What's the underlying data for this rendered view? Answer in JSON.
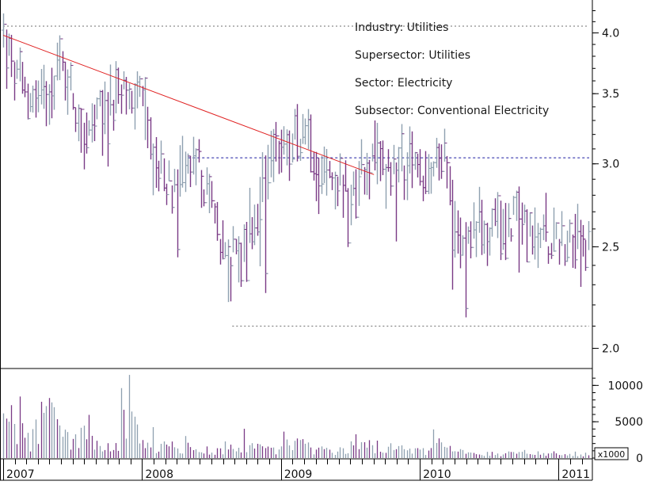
{
  "info": {
    "industry": "Industry: Utilities",
    "supersector": "Supersector: Utilities",
    "sector": "Sector: Electricity",
    "subsector": "Subsector: Conventional Electricity"
  },
  "colors": {
    "price_bar": "#7a3a86",
    "price_bar_alt": "#8fa0b0",
    "trend_line": "#e02020",
    "support_line": "#1a1aa0",
    "reference_line": "#707070",
    "volume_bar": "#7a3a86",
    "axis": "#000000"
  },
  "chart_data": [
    {
      "type": "bar",
      "title": "",
      "xlabel": "",
      "ylabel": "",
      "x_tick_labels": [
        "2007",
        "2008",
        "2009",
        "2010",
        "2011"
      ],
      "x_ticks": [
        2007.0,
        2008.0,
        2009.0,
        2010.0,
        2011.0
      ],
      "xlim": [
        2007.0,
        2011.22
      ],
      "y_scale": "log",
      "ylim": [
        1.92,
        4.3
      ],
      "y_ticks": [
        2.0,
        2.5,
        3.0,
        3.5,
        4.0
      ],
      "y_tick_labels": [
        "2.0",
        "2.5",
        "3.0",
        "3.5",
        "4.0"
      ],
      "grid": false,
      "price_anchors": [
        [
          2007.0,
          4.0
        ],
        [
          2007.05,
          3.75
        ],
        [
          2007.1,
          3.6
        ],
        [
          2007.17,
          3.5
        ],
        [
          2007.25,
          3.45
        ],
        [
          2007.33,
          3.55
        ],
        [
          2007.4,
          3.75
        ],
        [
          2007.47,
          3.6
        ],
        [
          2007.55,
          3.3
        ],
        [
          2007.6,
          3.15
        ],
        [
          2007.7,
          3.35
        ],
        [
          2007.8,
          3.45
        ],
        [
          2007.87,
          3.5
        ],
        [
          2007.92,
          3.45
        ],
        [
          2008.0,
          3.5
        ],
        [
          2008.04,
          3.25
        ],
        [
          2008.08,
          3.05
        ],
        [
          2008.14,
          2.95
        ],
        [
          2008.2,
          2.85
        ],
        [
          2008.26,
          2.9
        ],
        [
          2008.32,
          3.0
        ],
        [
          2008.4,
          3.0
        ],
        [
          2008.46,
          2.8
        ],
        [
          2008.52,
          2.7
        ],
        [
          2008.58,
          2.5
        ],
        [
          2008.63,
          2.4
        ],
        [
          2008.68,
          2.5
        ],
        [
          2008.74,
          2.5
        ],
        [
          2008.8,
          2.65
        ],
        [
          2008.86,
          2.75
        ],
        [
          2008.92,
          2.95
        ],
        [
          2008.97,
          3.05
        ],
        [
          2009.02,
          3.15
        ],
        [
          2009.08,
          3.15
        ],
        [
          2009.15,
          3.2
        ],
        [
          2009.21,
          3.15
        ],
        [
          2009.27,
          3.0
        ],
        [
          2009.33,
          2.95
        ],
        [
          2009.4,
          2.9
        ],
        [
          2009.47,
          2.85
        ],
        [
          2009.53,
          2.85
        ],
        [
          2009.58,
          2.95
        ],
        [
          2009.63,
          2.98
        ],
        [
          2009.7,
          3.0
        ],
        [
          2009.77,
          3.0
        ],
        [
          2009.83,
          2.98
        ],
        [
          2009.88,
          3.0
        ],
        [
          2009.93,
          3.0
        ],
        [
          2010.0,
          2.95
        ],
        [
          2010.06,
          2.9
        ],
        [
          2010.12,
          3.0
        ],
        [
          2010.17,
          3.05
        ],
        [
          2010.23,
          2.78
        ],
        [
          2010.29,
          2.6
        ],
        [
          2010.35,
          2.6
        ],
        [
          2010.45,
          2.62
        ],
        [
          2010.55,
          2.63
        ],
        [
          2010.65,
          2.65
        ],
        [
          2010.72,
          2.7
        ],
        [
          2010.78,
          2.62
        ],
        [
          2010.84,
          2.52
        ],
        [
          2010.9,
          2.57
        ],
        [
          2010.96,
          2.55
        ],
        [
          2011.02,
          2.57
        ],
        [
          2011.08,
          2.52
        ],
        [
          2011.14,
          2.5
        ],
        [
          2011.2,
          2.52
        ]
      ],
      "annotations": {
        "trend_line": {
          "from": [
            2007.0,
            3.98
          ],
          "to": [
            2009.67,
            2.93
          ]
        },
        "support_line": {
          "from": [
            2008.33,
            3.04
          ],
          "to": [
            2011.22,
            3.04
          ]
        },
        "upper_reference": {
          "from": [
            2007.0,
            4.06
          ],
          "to": [
            2011.22,
            4.06
          ]
        },
        "lower_reference": {
          "from": [
            2008.65,
            2.1
          ],
          "to": [
            2011.22,
            2.1
          ]
        }
      }
    },
    {
      "type": "bar",
      "title": "",
      "xlabel": "",
      "ylabel": "",
      "units_label": "x1000",
      "ylim": [
        0,
        12000
      ],
      "y_ticks": [
        0,
        5000,
        10000
      ],
      "y_tick_labels": [
        "0",
        "5000",
        "10000"
      ],
      "grid": false,
      "volume_anchors": [
        [
          2007.0,
          11000
        ],
        [
          2007.1,
          5000
        ],
        [
          2007.2,
          3000
        ],
        [
          2007.3,
          10500
        ],
        [
          2007.4,
          4500
        ],
        [
          2007.5,
          3000
        ],
        [
          2007.6,
          6000
        ],
        [
          2007.7,
          2500
        ],
        [
          2007.8,
          2500
        ],
        [
          2007.9,
          7500
        ],
        [
          2008.0,
          3000
        ],
        [
          2008.1,
          2000
        ],
        [
          2008.3,
          2000
        ],
        [
          2008.5,
          1500
        ],
        [
          2008.7,
          2500
        ],
        [
          2008.9,
          1700
        ],
        [
          2009.0,
          2200
        ],
        [
          2009.1,
          2500
        ],
        [
          2009.3,
          1700
        ],
        [
          2009.5,
          1700
        ],
        [
          2009.7,
          2400
        ],
        [
          2009.9,
          1400
        ],
        [
          2010.0,
          1200
        ],
        [
          2010.15,
          2800
        ],
        [
          2010.3,
          1000
        ],
        [
          2010.5,
          800
        ],
        [
          2010.7,
          800
        ],
        [
          2010.9,
          900
        ],
        [
          2011.0,
          900
        ],
        [
          2011.2,
          700
        ]
      ]
    }
  ]
}
